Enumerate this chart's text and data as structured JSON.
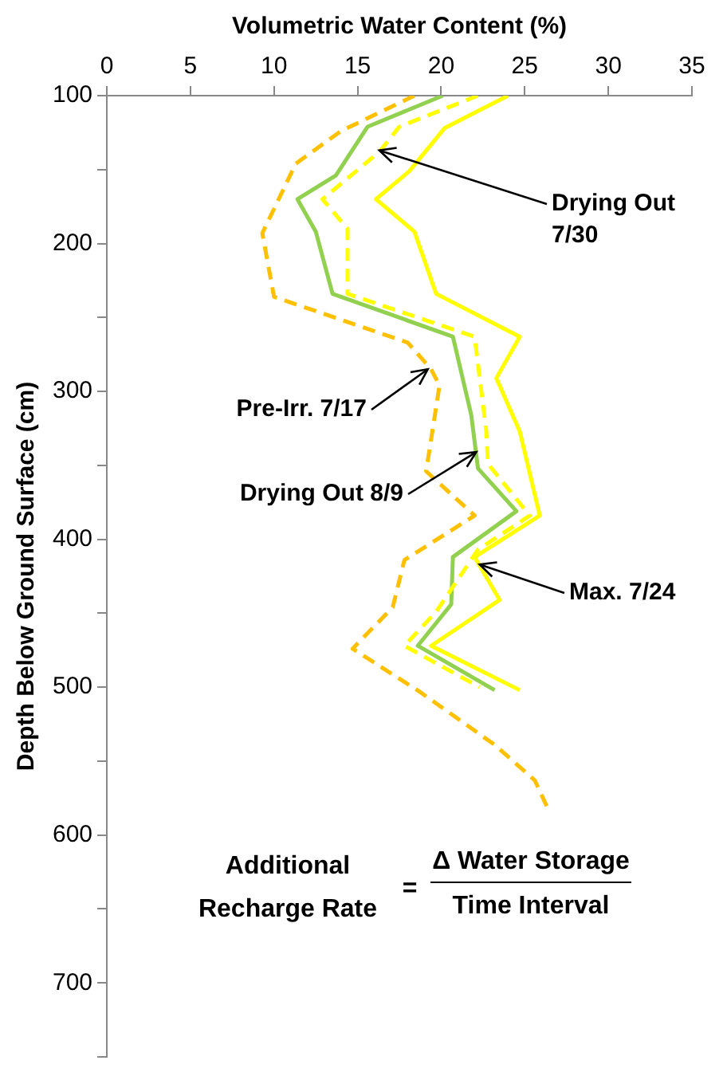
{
  "chart_data": {
    "type": "line",
    "xlabel": "Volumetric Water Content (%)",
    "ylabel": "Depth Below Ground Surface (cm)",
    "xlim": [
      0,
      35
    ],
    "xticks": [
      0,
      5,
      10,
      15,
      20,
      25,
      30,
      35
    ],
    "ylim": [
      750,
      100
    ],
    "yticks": [
      100,
      {
        "value": 150,
        "label": null
      },
      200,
      {
        "value": 250,
        "label": null
      },
      300,
      {
        "value": 350,
        "label": null
      },
      400,
      {
        "value": 450,
        "label": null
      },
      500,
      {
        "value": 550,
        "label": null
      },
      600,
      {
        "value": 650,
        "label": null
      },
      700,
      {
        "value": 750,
        "label": null
      }
    ],
    "grid": false,
    "legend": false,
    "marker": "none",
    "series": [
      {
        "color": "#ffc000",
        "line_style": "dashed",
        "x": [
          18.4,
          14.0,
          11.3,
          9.3,
          10.0,
          18.0,
          19.4,
          19.9,
          19.1,
          22.0,
          17.8,
          17.1,
          14.7,
          18.7,
          23.2,
          25.6,
          26.5
        ],
        "values": [
          100,
          124,
          146,
          193,
          236,
          267,
          285,
          296,
          354,
          384,
          414,
          446,
          474,
          503,
          539,
          563,
          585
        ]
      },
      {
        "color": "#ffff00",
        "line_style": "solid",
        "x": [
          24.0,
          20.2,
          18.1,
          16.1,
          18.4,
          19.7,
          24.7,
          23.3,
          24.7,
          25.9,
          22.0,
          23.5,
          19.4,
          24.7
        ],
        "values": [
          100,
          122,
          151,
          170,
          192,
          234,
          263,
          291,
          327,
          384,
          412,
          441,
          472,
          502
        ]
      },
      {
        "color": "#ffff00",
        "line_style": "dashed",
        "x": [
          22.2,
          17.5,
          16.3,
          12.9,
          14.4,
          14.4,
          22.0,
          22.7,
          22.8,
          25.3,
          22.2,
          19.7,
          17.8,
          22.3
        ],
        "values": [
          100,
          121,
          138,
          170,
          190,
          234,
          263,
          327,
          349,
          384,
          407,
          449,
          472,
          500
        ]
      },
      {
        "color": "#92d050",
        "line_style": "solid",
        "x": [
          20.1,
          15.6,
          13.7,
          11.4,
          12.5,
          13.5,
          20.7,
          21.8,
          22.2,
          24.5,
          20.7,
          20.6,
          18.6,
          23.2
        ],
        "values": [
          100,
          121,
          154,
          170,
          192,
          234,
          263,
          316,
          352,
          381,
          412,
          444,
          472,
          502
        ]
      }
    ],
    "annotations": [
      {
        "text": "Drying Out 7/30",
        "x": 16.3,
        "y": 137
      },
      {
        "text": "Pre-Irr. 7/17",
        "x": 19.2,
        "y": 285
      },
      {
        "text": "Drying Out 8/9",
        "x": 22.1,
        "y": 341
      },
      {
        "text": "Max. 7/24",
        "x": 22.3,
        "y": 417
      },
      "Additional Recharge Rate",
      "=",
      "Δ Water Storage",
      "Time Interval"
    ]
  }
}
